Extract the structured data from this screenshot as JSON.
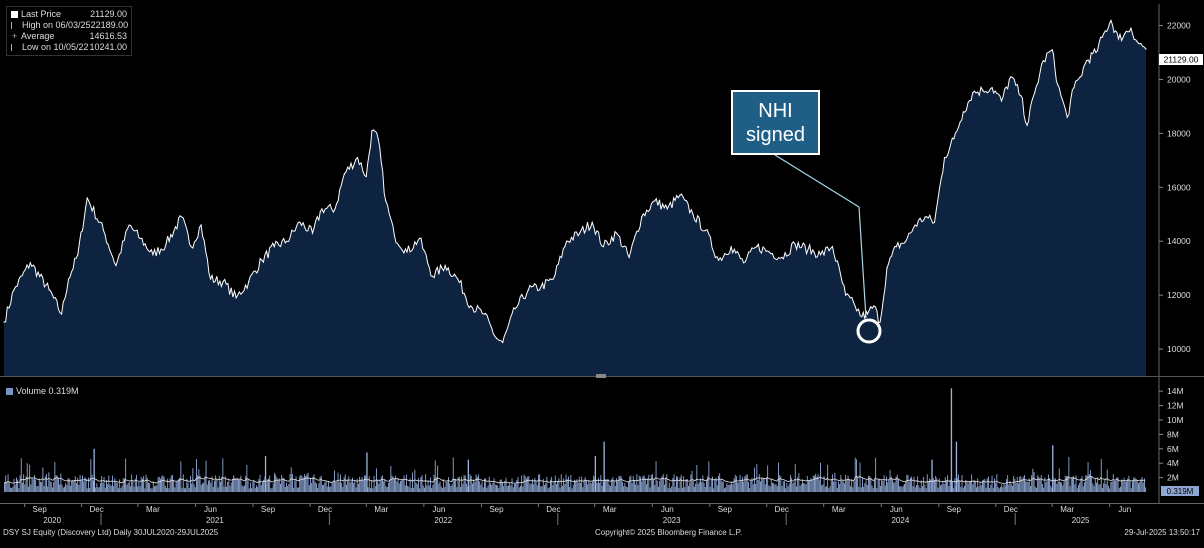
{
  "legend": {
    "last_label": "Last Price",
    "last_value": "21129.00",
    "high_label": "High on 06/03/25",
    "high_value": "22189.00",
    "avg_label": "Average",
    "avg_value": "14616.53",
    "low_label": "Low on 10/05/22",
    "low_value": "10241.00"
  },
  "volume_legend": "Volume 0.319M",
  "last_price_tag": "21129.00",
  "volume_tag": "0.319M",
  "annotation": {
    "line1": "NHI",
    "line2": "signed"
  },
  "footer": {
    "left": "DSY SJ Equity (Discovery Ltd)  Daily 30JUL2020-29JUL2025",
    "center": "Copyright© 2025 Bloomberg Finance L.P.",
    "right": "29-Jul-2025 13:50:17"
  },
  "colors": {
    "area": "#0d2340",
    "line": "#ffffff",
    "volume_bar": "#8ea6d4",
    "callout": "#1f5f86"
  },
  "chart_data": [
    {
      "type": "area",
      "title": "",
      "series": [
        {
          "name": "Last Price"
        }
      ],
      "ylim": [
        9000,
        22800
      ],
      "y_ticks": [
        10000,
        12000,
        14000,
        16000,
        18000,
        20000,
        22000
      ],
      "x_ticks": [
        "Sep",
        "Dec",
        "Mar",
        "Jun",
        "Sep",
        "Dec",
        "Mar",
        "Jun",
        "Sep",
        "Dec",
        "Mar",
        "Jun",
        "Sep",
        "Dec",
        "Mar",
        "Jun",
        "Sep",
        "Dec",
        "Mar",
        "Jun"
      ],
      "x_years": [
        "2020",
        "2021",
        "2022",
        "2023",
        "2024",
        "2025"
      ],
      "x": [
        "2020-07-30",
        "2020-08-15",
        "2020-09-10",
        "2020-10-10",
        "2020-10-30",
        "2020-11-10",
        "2020-11-25",
        "2020-12-10",
        "2021-01-05",
        "2021-01-25",
        "2021-02-15",
        "2021-03-05",
        "2021-03-25",
        "2021-04-15",
        "2021-05-10",
        "2021-05-25",
        "2021-06-10",
        "2021-06-25",
        "2021-07-15",
        "2021-08-05",
        "2021-08-25",
        "2021-09-15",
        "2021-10-05",
        "2021-10-25",
        "2021-11-15",
        "2021-12-05",
        "2021-12-20",
        "2022-01-10",
        "2022-01-25",
        "2022-02-15",
        "2022-03-01",
        "2022-03-10",
        "2022-03-20",
        "2022-04-01",
        "2022-04-15",
        "2022-05-05",
        "2022-05-25",
        "2022-06-15",
        "2022-07-05",
        "2022-07-25",
        "2022-08-15",
        "2022-09-05",
        "2022-09-25",
        "2022-10-05",
        "2022-10-25",
        "2022-11-15",
        "2022-12-05",
        "2022-12-25",
        "2023-01-15",
        "2023-02-05",
        "2023-02-25",
        "2023-03-15",
        "2023-04-05",
        "2023-04-25",
        "2023-05-15",
        "2023-06-05",
        "2023-06-25",
        "2023-07-15",
        "2023-08-05",
        "2023-08-25",
        "2023-09-15",
        "2023-10-05",
        "2023-10-25",
        "2023-11-15",
        "2023-12-05",
        "2023-12-25",
        "2024-01-15",
        "2024-02-05",
        "2024-02-25",
        "2024-03-15",
        "2024-04-05",
        "2024-04-20",
        "2024-05-01",
        "2024-05-10",
        "2024-05-20",
        "2024-05-30",
        "2024-06-10",
        "2024-06-25",
        "2024-07-10",
        "2024-07-25",
        "2024-08-10",
        "2024-08-25",
        "2024-09-10",
        "2024-09-25",
        "2024-10-10",
        "2024-10-25",
        "2024-11-10",
        "2024-11-25",
        "2024-12-10",
        "2024-12-25",
        "2025-01-10",
        "2025-01-20",
        "2025-02-01",
        "2025-02-15",
        "2025-03-01",
        "2025-03-10",
        "2025-03-25",
        "2025-04-05",
        "2025-04-15",
        "2025-04-25",
        "2025-05-10",
        "2025-05-25",
        "2025-06-03",
        "2025-06-15",
        "2025-06-25",
        "2025-07-05",
        "2025-07-15",
        "2025-07-29"
      ],
      "y": [
        11000,
        12200,
        13200,
        12200,
        11300,
        12600,
        13500,
        15600,
        14400,
        13100,
        14600,
        14100,
        13500,
        13900,
        14900,
        13800,
        14600,
        12600,
        12500,
        11900,
        12500,
        13300,
        13800,
        14000,
        14700,
        14300,
        15200,
        15200,
        16500,
        17100,
        16400,
        18100,
        17800,
        15500,
        14200,
        13600,
        14100,
        12700,
        13100,
        12600,
        11600,
        11300,
        10400,
        10241,
        11500,
        12200,
        12300,
        12600,
        14000,
        14300,
        14700,
        13800,
        14300,
        13400,
        14900,
        15500,
        15200,
        15700,
        15000,
        14400,
        13300,
        13800,
        13200,
        13800,
        13600,
        13400,
        13900,
        13700,
        13500,
        13800,
        12000,
        11600,
        11200,
        11300,
        11600,
        11000,
        13000,
        13800,
        14000,
        14600,
        14900,
        14700,
        17100,
        17800,
        18800,
        19500,
        19600,
        19700,
        19200,
        20100,
        19400,
        18300,
        19500,
        20700,
        21100,
        19800,
        18600,
        19700,
        20100,
        20700,
        21000,
        21800,
        22189,
        21500,
        21700,
        21900,
        21400,
        21129
      ]
    },
    {
      "type": "bar",
      "title": "",
      "series": [
        {
          "name": "Volume"
        }
      ],
      "ylim": [
        0,
        15
      ],
      "unit": "M",
      "y_ticks": [
        "2M",
        "4M",
        "6M",
        "8M",
        "10M",
        "12M",
        "14M"
      ],
      "spikes": [
        {
          "date": "2020-12-20",
          "value": 6.0
        },
        {
          "date": "2021-09-20",
          "value": 5.0
        },
        {
          "date": "2022-03-01",
          "value": 5.5
        },
        {
          "date": "2022-08-10",
          "value": 4.5
        },
        {
          "date": "2023-03-01",
          "value": 5.0
        },
        {
          "date": "2023-03-15",
          "value": 7.0
        },
        {
          "date": "2024-08-20",
          "value": 4.5
        },
        {
          "date": "2024-09-20",
          "value": 14.4
        },
        {
          "date": "2024-09-28",
          "value": 7.0
        },
        {
          "date": "2025-03-01",
          "value": 6.5
        }
      ],
      "typical_range": [
        0.5,
        2.5
      ],
      "last_value": 0.319
    }
  ]
}
